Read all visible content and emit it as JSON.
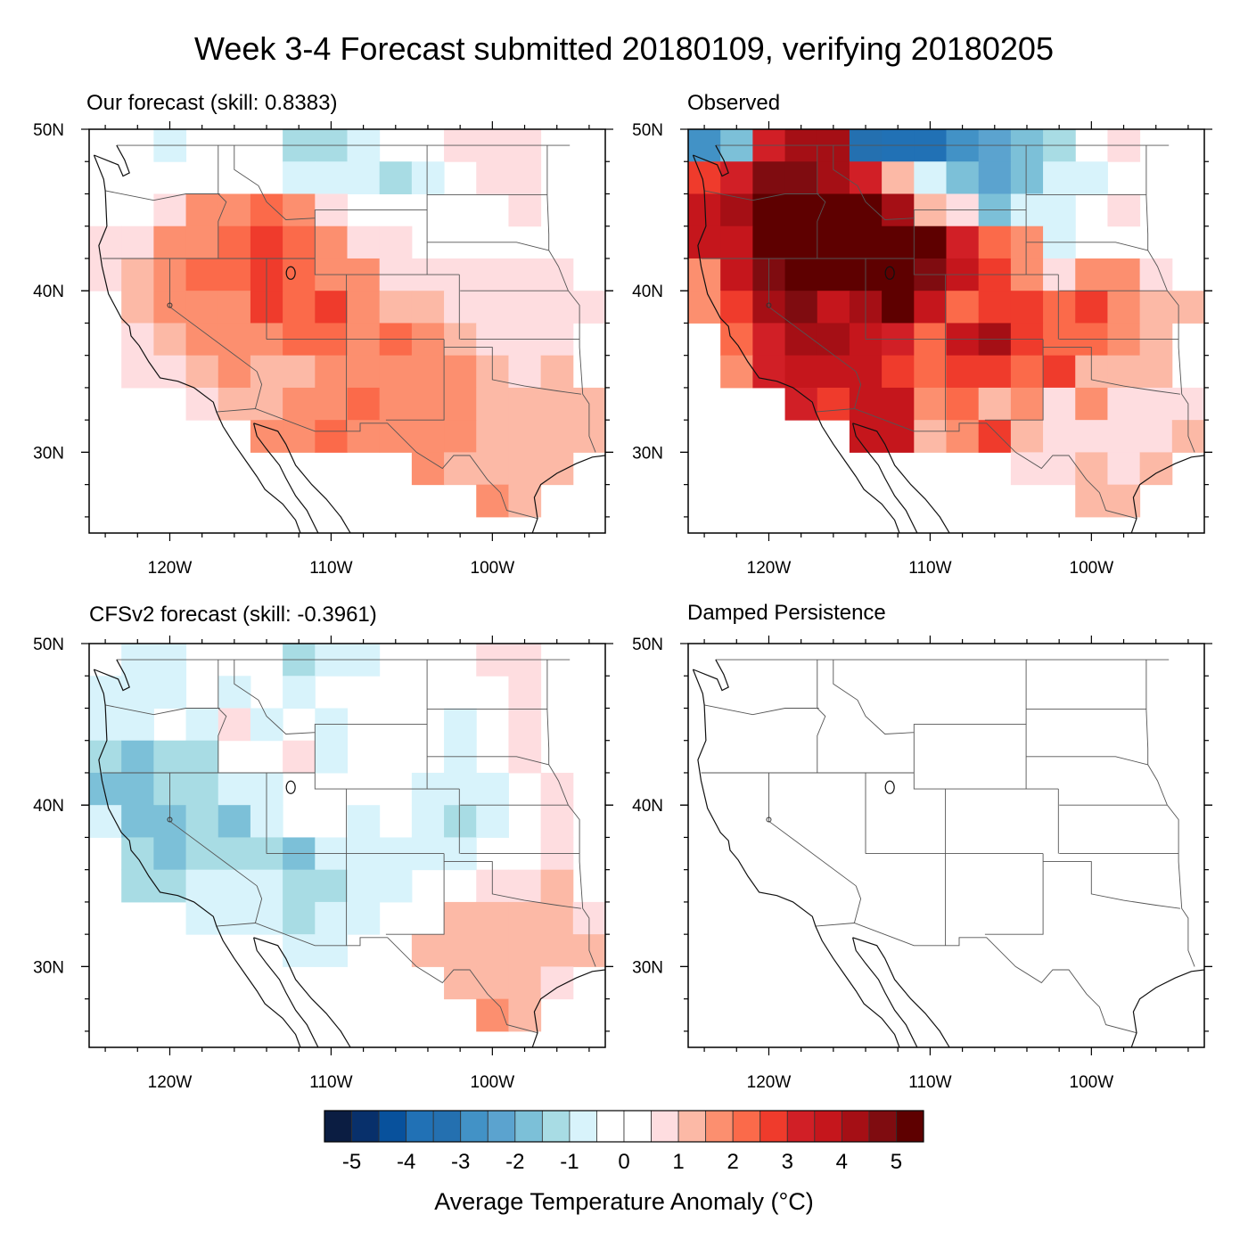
{
  "title": "Week 3-4 Forecast submitted 20180109, verifying 20180205",
  "colorbar": {
    "label": "Average Temperature Anomaly (°C)",
    "levels": [
      -5,
      -4.5,
      -4,
      -3.5,
      -3,
      -2.5,
      -2,
      -1.5,
      -1,
      -0.5,
      0,
      0.5,
      1,
      1.5,
      2,
      2.5,
      3,
      3.5,
      4,
      4.5,
      5
    ],
    "tick_labels": [
      "-5",
      "-4",
      "-3",
      "-2",
      "-1",
      "0",
      "1",
      "2",
      "3",
      "4",
      "5"
    ],
    "tick_values": [
      -5,
      -4,
      -3,
      -2,
      -1,
      0,
      1,
      2,
      3,
      4,
      5
    ],
    "colors": [
      "#0b1d42",
      "#08306b",
      "#08519c",
      "#2171b5",
      "#2470b0",
      "#4292c6",
      "#5ba3cf",
      "#7cc0d8",
      "#a8dce4",
      "#d8f3fb",
      "#ffffff",
      "#ffffff",
      "#fedde0",
      "#fcb9a6",
      "#fc8f6f",
      "#fb6a4a",
      "#ef3b2c",
      "#d11f26",
      "#c5161c",
      "#a50f15",
      "#7f0c10",
      "#5e0000"
    ]
  },
  "axes": {
    "lat_labels": [
      "50N",
      "40N",
      "30N"
    ],
    "lat_values": [
      50,
      40,
      30
    ],
    "lon_labels": [
      "120W",
      "110W",
      "100W"
    ],
    "lon_values": [
      -120,
      -110,
      -100
    ],
    "lon_range": [
      -125,
      -93
    ],
    "lat_range": [
      25,
      50
    ]
  },
  "chart_data": [
    {
      "type": "heatmap",
      "title": "Our forecast (skill: 0.8383)",
      "lon_centers": [
        -124,
        -122,
        -120,
        -118,
        -116,
        -114,
        -112,
        -110,
        -108,
        -106,
        -104,
        -102,
        -100,
        -98,
        -96,
        -94
      ],
      "lat_centers": [
        49,
        47,
        45,
        43,
        41,
        39,
        37,
        35,
        33,
        31,
        29,
        27
      ],
      "values": [
        [
          0,
          0,
          -0.8,
          0,
          0,
          0,
          -1.2,
          -1.2,
          -0.8,
          0,
          0,
          0.8,
          0.8,
          0.8,
          0,
          0
        ],
        [
          0,
          0,
          0,
          0,
          0,
          0,
          -0.8,
          -0.8,
          -0.8,
          -1.2,
          -0.8,
          0,
          0.8,
          0.8,
          0,
          0
        ],
        [
          0,
          0,
          0.8,
          1.5,
          1.5,
          2,
          1.5,
          0.8,
          0,
          0,
          0,
          0,
          0,
          0.8,
          0,
          0
        ],
        [
          0.8,
          0.8,
          1.5,
          1.5,
          2,
          2.5,
          2,
          1.5,
          0.8,
          0.8,
          0,
          0,
          0,
          0,
          0,
          0
        ],
        [
          0.8,
          1.2,
          1.5,
          2,
          2,
          2.5,
          2,
          1.5,
          1.5,
          0.8,
          0.8,
          0.8,
          0.8,
          0.8,
          0.8,
          0
        ],
        [
          0,
          1.2,
          1.5,
          1.5,
          1.5,
          2.5,
          2,
          2.5,
          1.5,
          1.2,
          1.2,
          0.8,
          0.8,
          0.8,
          0.8,
          0.8
        ],
        [
          0,
          0.8,
          1.2,
          1.5,
          1.5,
          1.5,
          2,
          2,
          1.5,
          2,
          1.5,
          1.2,
          0.8,
          0.8,
          0.8,
          0
        ],
        [
          0,
          0.8,
          0.8,
          1.2,
          1.5,
          1.2,
          1.2,
          1.5,
          1.5,
          1.5,
          1.5,
          1.5,
          1.2,
          0.8,
          1.2,
          0
        ],
        [
          0,
          0,
          0,
          0.8,
          1.2,
          1.2,
          1.5,
          1.5,
          2,
          1.5,
          1.5,
          1.5,
          1.2,
          1.2,
          1.2,
          1.2
        ],
        [
          0,
          0,
          0,
          0,
          0,
          1.5,
          1.5,
          2,
          1.5,
          1.5,
          1.5,
          1.5,
          1.2,
          1.2,
          1.2,
          1.2
        ],
        [
          0,
          0,
          0,
          0,
          0,
          0,
          0,
          0,
          0,
          0,
          1.5,
          1.2,
          1.2,
          1.2,
          1.2,
          0
        ],
        [
          0,
          0,
          0,
          0,
          0,
          0,
          0,
          0,
          0,
          0,
          0,
          0,
          1.5,
          1.2,
          0,
          0
        ]
      ]
    },
    {
      "type": "heatmap",
      "title": "Observed",
      "lon_centers": [
        -124,
        -122,
        -120,
        -118,
        -116,
        -114,
        -112,
        -110,
        -108,
        -106,
        -104,
        -102,
        -100,
        -98,
        -96,
        -94
      ],
      "lat_centers": [
        49,
        47,
        45,
        43,
        41,
        39,
        37,
        35,
        33,
        31,
        29,
        27
      ],
      "values": [
        [
          -3,
          -2,
          3,
          4,
          4,
          -3.5,
          -4,
          -4,
          -3,
          -2.5,
          -2,
          -1.5,
          0,
          0.8,
          0,
          0
        ],
        [
          2.5,
          3,
          4.5,
          4.5,
          4,
          3,
          1,
          -0.8,
          -2,
          -2.5,
          -2,
          -1,
          -0.8,
          0,
          0,
          0
        ],
        [
          3.5,
          4,
          5,
          5,
          5,
          5,
          4,
          1,
          0.8,
          -2,
          -0.8,
          -0.8,
          0,
          0.8,
          0,
          0
        ],
        [
          3.5,
          3.5,
          5,
          5,
          5,
          5,
          5,
          5,
          3,
          2,
          1.5,
          -0.8,
          0,
          0,
          0,
          0
        ],
        [
          1.5,
          3.5,
          4.5,
          5,
          5,
          5,
          5,
          4.5,
          3.5,
          2.5,
          1.5,
          0.8,
          1.5,
          1.5,
          0.8,
          0
        ],
        [
          1.5,
          2.5,
          4,
          4.5,
          3.5,
          4,
          5,
          3.5,
          2,
          2.5,
          2.5,
          2,
          2.5,
          1.5,
          1.2,
          1.2
        ],
        [
          0,
          2,
          3,
          4,
          4,
          3.5,
          3,
          2,
          3.5,
          4,
          2.5,
          2,
          2,
          1.5,
          1.2,
          0
        ],
        [
          0,
          1.5,
          3,
          3.5,
          3.5,
          3.5,
          2.5,
          2,
          2.5,
          2.5,
          2,
          2.5,
          1.2,
          1.2,
          1.2,
          0
        ],
        [
          0,
          0,
          0,
          3,
          2.5,
          3.5,
          3.5,
          1.5,
          2,
          1.2,
          1.5,
          0.8,
          1.5,
          0.8,
          0.8,
          0.8
        ],
        [
          0,
          0,
          0,
          0,
          0,
          3.5,
          3.5,
          1.2,
          1.5,
          2.5,
          1.2,
          0.8,
          0.8,
          0.8,
          0.8,
          1.2
        ],
        [
          0,
          0,
          0,
          0,
          0,
          0,
          0,
          0,
          0,
          0,
          0.8,
          0.8,
          1.2,
          0.8,
          1.2,
          0
        ],
        [
          0,
          0,
          0,
          0,
          0,
          0,
          0,
          0,
          0,
          0,
          0,
          0,
          1.2,
          1.2,
          0,
          0
        ]
      ]
    },
    {
      "type": "heatmap",
      "title": "CFSv2 forecast (skill: -0.3961)",
      "lon_centers": [
        -124,
        -122,
        -120,
        -118,
        -116,
        -114,
        -112,
        -110,
        -108,
        -106,
        -104,
        -102,
        -100,
        -98,
        -96,
        -94
      ],
      "lat_centers": [
        49,
        47,
        45,
        43,
        41,
        39,
        37,
        35,
        33,
        31,
        29,
        27
      ],
      "values": [
        [
          0,
          -0.8,
          -0.8,
          0,
          0,
          0,
          -1.2,
          -0.8,
          -0.8,
          0,
          0,
          0,
          0.8,
          0.8,
          0,
          0
        ],
        [
          -0.8,
          -0.8,
          -0.8,
          0,
          -0.8,
          0,
          -0.8,
          0,
          0,
          0,
          0,
          0,
          0,
          0.8,
          0,
          0
        ],
        [
          -0.8,
          -0.8,
          0,
          -0.8,
          0.8,
          -0.8,
          0,
          -0.8,
          0,
          0,
          0,
          -0.8,
          0,
          0.8,
          0,
          0
        ],
        [
          -1.2,
          -1.7,
          -1.2,
          -1.2,
          0,
          0,
          0.8,
          -0.8,
          0,
          0,
          0,
          -0.8,
          0,
          0.8,
          0,
          0
        ],
        [
          -1.7,
          -1.7,
          -1.2,
          -1.2,
          -0.8,
          -0.8,
          0,
          0,
          0,
          0,
          -0.8,
          -0.8,
          -0.8,
          0,
          0.8,
          0
        ],
        [
          -0.8,
          -1.7,
          -1.7,
          -1.2,
          -1.7,
          -0.8,
          0,
          0,
          -0.8,
          0,
          -0.8,
          -1.2,
          -0.8,
          0,
          0.8,
          0
        ],
        [
          0,
          -1.2,
          -1.7,
          -1.2,
          -1.2,
          -1.2,
          -1.7,
          -0.8,
          -0.8,
          -0.8,
          -0.8,
          -0.8,
          0,
          0,
          0.8,
          0
        ],
        [
          0,
          -1.2,
          -1.2,
          -0.8,
          -0.8,
          -0.8,
          -1.2,
          -1.2,
          -0.8,
          -0.8,
          0,
          0,
          0.8,
          0.8,
          1.2,
          0
        ],
        [
          0,
          0,
          0,
          -0.8,
          -0.8,
          -0.8,
          -1.2,
          -0.8,
          -0.8,
          0,
          0,
          1.2,
          1.2,
          1.2,
          1.2,
          0.8
        ],
        [
          0,
          0,
          0,
          0,
          0,
          0,
          -0.8,
          -0.8,
          0,
          0,
          1.2,
          1.2,
          1.2,
          1.2,
          1.2,
          1.2
        ],
        [
          0,
          0,
          0,
          0,
          0,
          0,
          0,
          0,
          0,
          0,
          0,
          1.2,
          1.2,
          1.2,
          0.8,
          0
        ],
        [
          0,
          0,
          0,
          0,
          0,
          0,
          0,
          0,
          0,
          0,
          0,
          0,
          1.5,
          1.2,
          0,
          0
        ]
      ]
    },
    {
      "type": "heatmap",
      "title": "Damped Persistence",
      "lon_centers": [],
      "lat_centers": [],
      "values": []
    }
  ]
}
